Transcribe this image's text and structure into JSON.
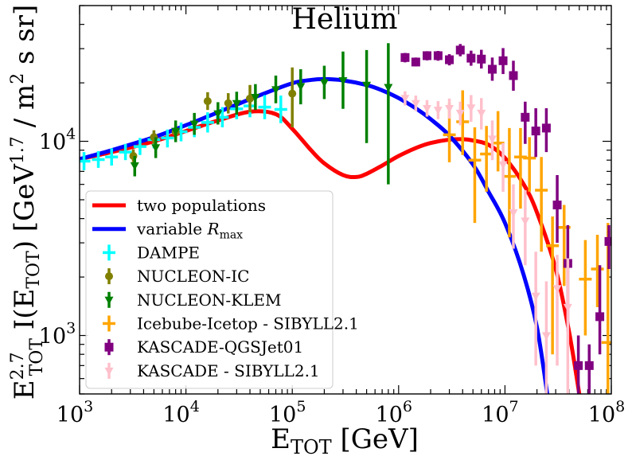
{
  "chart_data": {
    "type": "scatter",
    "title": "Helium",
    "xlabel": "E_TOT [GeV]",
    "ylabel": "E_TOT^2.7 I(E_TOT) [GeV^1.7 / m^2 s sr]",
    "xscale": "log",
    "yscale": "log",
    "xlim": [
      1000,
      100000000
    ],
    "ylim": [
      500,
      50000
    ],
    "legend_position": "lower-left",
    "x_ticks": [
      {
        "value": 1000,
        "base": "10",
        "exp": "3"
      },
      {
        "value": 10000,
        "base": "10",
        "exp": "4"
      },
      {
        "value": 100000,
        "base": "10",
        "exp": "5"
      },
      {
        "value": 1000000,
        "base": "10",
        "exp": "6"
      },
      {
        "value": 10000000,
        "base": "10",
        "exp": "7"
      },
      {
        "value": 100000000,
        "base": "10",
        "exp": "8"
      }
    ],
    "y_ticks": [
      {
        "value": 1000,
        "base": "10",
        "exp": "3"
      },
      {
        "value": 10000,
        "base": "10",
        "exp": "4"
      }
    ],
    "lines": [
      {
        "name": "two populations",
        "color": "#ff0000",
        "x": [
          1000,
          2000,
          5000,
          10000,
          20000,
          40000,
          70000,
          100000,
          150000,
          200000,
          300000,
          400000,
          500000,
          700000,
          1000000,
          1500000,
          2000000,
          3000000,
          4000000,
          5000000,
          7000000,
          10000000,
          15000000,
          20000000,
          30000000,
          40000000,
          50000000
        ],
        "y": [
          8100,
          8800,
          10000,
          11300,
          12800,
          14200,
          13800,
          11600,
          9000,
          7700,
          6700,
          6550,
          6800,
          7500,
          8400,
          9300,
          9800,
          10200,
          10250,
          10100,
          9600,
          8200,
          6000,
          4300,
          2200,
          1050,
          500
        ]
      },
      {
        "name": "variable R_max",
        "color": "#0000ff",
        "x": [
          1000,
          2000,
          5000,
          10000,
          20000,
          50000,
          100000,
          150000,
          200000,
          300000,
          500000,
          700000,
          1000000,
          1500000,
          2000000,
          3000000,
          5000000,
          7000000,
          10000000,
          15000000,
          20000000,
          25000000
        ],
        "y": [
          8100,
          9000,
          10500,
          12100,
          14100,
          17300,
          19900,
          20700,
          20900,
          20600,
          19500,
          18300,
          16700,
          14600,
          13000,
          10700,
          7600,
          5500,
          3800,
          2050,
          1100,
          500
        ]
      }
    ],
    "series": [
      {
        "name": "DAMPE",
        "color": "#00ffff",
        "marker": "plus",
        "points": [
          {
            "x": 1100,
            "y": 7900,
            "lo": 7100,
            "hi": 8800
          },
          {
            "x": 1500,
            "y": 8050,
            "lo": 7300,
            "hi": 8900
          },
          {
            "x": 2000,
            "y": 8300,
            "lo": 7500,
            "hi": 9200
          },
          {
            "x": 2700,
            "y": 8800,
            "lo": 8000,
            "hi": 9700
          },
          {
            "x": 3700,
            "y": 9400,
            "lo": 8500,
            "hi": 10400
          },
          {
            "x": 5000,
            "y": 10200,
            "lo": 9200,
            "hi": 11300
          },
          {
            "x": 6700,
            "y": 10400,
            "lo": 9300,
            "hi": 11500
          },
          {
            "x": 9000,
            "y": 11200,
            "lo": 10000,
            "hi": 12500
          },
          {
            "x": 12000,
            "y": 11800,
            "lo": 10500,
            "hi": 13200
          },
          {
            "x": 16000,
            "y": 12500,
            "lo": 11100,
            "hi": 14100
          },
          {
            "x": 22000,
            "y": 13300,
            "lo": 11800,
            "hi": 15000
          },
          {
            "x": 30000,
            "y": 14700,
            "lo": 13000,
            "hi": 16600
          },
          {
            "x": 40000,
            "y": 15200,
            "lo": 13300,
            "hi": 17400
          },
          {
            "x": 55000,
            "y": 15000,
            "lo": 13000,
            "hi": 17300
          },
          {
            "x": 78000,
            "y": 14600,
            "lo": 12400,
            "hi": 17200
          }
        ]
      },
      {
        "name": "NUCLEON-IC",
        "color": "#808000",
        "marker": "circle",
        "points": [
          {
            "x": 3200,
            "y": 8400,
            "lo": 7800,
            "hi": 9100
          },
          {
            "x": 5000,
            "y": 10500,
            "lo": 9700,
            "hi": 11400
          },
          {
            "x": 8000,
            "y": 11200,
            "lo": 10200,
            "hi": 12300
          },
          {
            "x": 16000,
            "y": 16100,
            "lo": 14500,
            "hi": 17900
          },
          {
            "x": 25000,
            "y": 15700,
            "lo": 13900,
            "hi": 17700
          },
          {
            "x": 40000,
            "y": 16600,
            "lo": 14100,
            "hi": 19500
          },
          {
            "x": 100000,
            "y": 17600,
            "lo": 11800,
            "hi": 24000
          }
        ]
      },
      {
        "name": "NUCLEON-KLEM",
        "color": "#008000",
        "marker": "triangle-down",
        "points": [
          {
            "x": 3300,
            "y": 7500,
            "lo": 6600,
            "hi": 8400
          },
          {
            "x": 5200,
            "y": 9300,
            "lo": 8200,
            "hi": 10500
          },
          {
            "x": 8000,
            "y": 11300,
            "lo": 9900,
            "hi": 12800
          },
          {
            "x": 12000,
            "y": 12300,
            "lo": 10800,
            "hi": 14000
          },
          {
            "x": 20000,
            "y": 13900,
            "lo": 12200,
            "hi": 15900
          },
          {
            "x": 30000,
            "y": 15700,
            "lo": 13700,
            "hi": 18000
          },
          {
            "x": 45000,
            "y": 16900,
            "lo": 14500,
            "hi": 19700
          },
          {
            "x": 70000,
            "y": 18500,
            "lo": 15700,
            "hi": 21800
          },
          {
            "x": 120000,
            "y": 19200,
            "lo": 15500,
            "hi": 23500
          },
          {
            "x": 200000,
            "y": 20100,
            "lo": 16500,
            "hi": 24500
          },
          {
            "x": 300000,
            "y": 20600,
            "lo": 14700,
            "hi": 29000
          },
          {
            "x": 500000,
            "y": 19500,
            "lo": 9800,
            "hi": 29500
          },
          {
            "x": 800000,
            "y": 19000,
            "lo": 6000,
            "hi": 32000
          }
        ]
      },
      {
        "name": "Icebube-Icetop - SIBYLL2.1",
        "color": "#ffa500",
        "marker": "plus",
        "points": [
          {
            "x": 3000000,
            "y": 10800,
            "lo": 7800,
            "hi": 15800
          },
          {
            "x": 4000000,
            "y": 12600,
            "lo": 8500,
            "hi": 18300
          },
          {
            "x": 5200000,
            "y": 8000,
            "lo": 3800,
            "hi": 11800
          },
          {
            "x": 6700000,
            "y": 8600,
            "lo": 5500,
            "hi": 12000
          },
          {
            "x": 8600000,
            "y": 9800,
            "lo": 7000,
            "hi": 14300
          },
          {
            "x": 11000000,
            "y": 6600,
            "lo": 3200,
            "hi": 11700
          },
          {
            "x": 14000000,
            "y": 8300,
            "lo": 4500,
            "hi": 11700
          },
          {
            "x": 17000000,
            "y": 8200,
            "lo": 5500,
            "hi": 10500
          },
          {
            "x": 22000000,
            "y": 5600,
            "lo": 2700,
            "hi": 8300
          },
          {
            "x": 28000000,
            "y": 2900,
            "lo": 800,
            "hi": 4100
          },
          {
            "x": 36000000,
            "y": 3600,
            "lo": 1800,
            "hi": 4700
          },
          {
            "x": 57000000,
            "y": 1950,
            "lo": 1000,
            "hi": 3100
          },
          {
            "x": 74000000,
            "y": 2200,
            "lo": 1400,
            "hi": 3300
          },
          {
            "x": 93000000,
            "y": 920,
            "lo": 500,
            "hi": 3800
          }
        ]
      },
      {
        "name": "KASCADE-QGSJet01",
        "color": "#800080",
        "marker": "square",
        "points": [
          {
            "x": 1150000,
            "y": 27000,
            "lo": 25500,
            "hi": 28500
          },
          {
            "x": 1450000,
            "y": 25600,
            "lo": 24300,
            "hi": 27000
          },
          {
            "x": 1850000,
            "y": 27600,
            "lo": 26100,
            "hi": 29100
          },
          {
            "x": 2350000,
            "y": 27600,
            "lo": 26000,
            "hi": 29200
          },
          {
            "x": 3000000,
            "y": 26300,
            "lo": 24600,
            "hi": 28100
          },
          {
            "x": 3800000,
            "y": 29500,
            "lo": 27400,
            "hi": 31700
          },
          {
            "x": 4800000,
            "y": 26800,
            "lo": 24500,
            "hi": 29300
          },
          {
            "x": 6000000,
            "y": 26500,
            "lo": 23700,
            "hi": 29600
          },
          {
            "x": 7600000,
            "y": 23500,
            "lo": 20500,
            "hi": 27000
          },
          {
            "x": 9600000,
            "y": 26000,
            "lo": 22200,
            "hi": 30200
          },
          {
            "x": 12000000,
            "y": 21800,
            "lo": 18200,
            "hi": 26000
          },
          {
            "x": 15500000,
            "y": 13300,
            "lo": 9700,
            "hi": 16000
          },
          {
            "x": 19500000,
            "y": 11300,
            "lo": 8300,
            "hi": 14800
          },
          {
            "x": 24500000,
            "y": 11700,
            "lo": 8800,
            "hi": 14800
          },
          {
            "x": 31000000,
            "y": 4700,
            "lo": 3000,
            "hi": 6700
          },
          {
            "x": 39000000,
            "y": 2350,
            "lo": 1050,
            "hi": 3700
          },
          {
            "x": 49000000,
            "y": 700,
            "lo": 500,
            "hi": 1000
          },
          {
            "x": 62000000,
            "y": 700,
            "lo": 500,
            "hi": 900
          },
          {
            "x": 78000000,
            "y": 1250,
            "lo": 800,
            "hi": 2300
          },
          {
            "x": 95000000,
            "y": 3050,
            "lo": 2200,
            "hi": 3700
          }
        ]
      },
      {
        "name": "KASCADE - SIBYLL2.1",
        "color": "#ffc0cb",
        "marker": "triangle-down",
        "points": [
          {
            "x": 1150000,
            "y": 16700,
            "lo": 15300,
            "hi": 18100
          },
          {
            "x": 1450000,
            "y": 15700,
            "lo": 14300,
            "hi": 17200
          },
          {
            "x": 1850000,
            "y": 14800,
            "lo": 13400,
            "hi": 16300
          },
          {
            "x": 2350000,
            "y": 14500,
            "lo": 13000,
            "hi": 16100
          },
          {
            "x": 3000000,
            "y": 14800,
            "lo": 13100,
            "hi": 16600
          },
          {
            "x": 3800000,
            "y": 14000,
            "lo": 12100,
            "hi": 16000
          },
          {
            "x": 4800000,
            "y": 14900,
            "lo": 12600,
            "hi": 17300
          },
          {
            "x": 6000000,
            "y": 14000,
            "lo": 11500,
            "hi": 16700
          },
          {
            "x": 7600000,
            "y": 10300,
            "lo": 8000,
            "hi": 12800
          },
          {
            "x": 9600000,
            "y": 7600,
            "lo": 5500,
            "hi": 9800
          },
          {
            "x": 12000000,
            "y": 4300,
            "lo": 2800,
            "hi": 6000
          },
          {
            "x": 15500000,
            "y": 3900,
            "lo": 2300,
            "hi": 5600
          },
          {
            "x": 19500000,
            "y": 1600,
            "lo": 700,
            "hi": 2700
          },
          {
            "x": 24500000,
            "y": 1000,
            "lo": 500,
            "hi": 1900
          },
          {
            "x": 31000000,
            "y": 1750,
            "lo": 700,
            "hi": 2600
          },
          {
            "x": 39000000,
            "y": 1400,
            "lo": 500,
            "hi": 2500
          }
        ]
      }
    ],
    "legend": [
      {
        "label": "two populations",
        "color": "#ff0000",
        "kind": "line"
      },
      {
        "label": "variable ",
        "label_italic": "R",
        "label_sub": "max",
        "color": "#0000ff",
        "kind": "line"
      },
      {
        "label": "DAMPE",
        "color": "#00ffff",
        "kind": "plus"
      },
      {
        "label": "NUCLEON-IC",
        "color": "#808000",
        "kind": "circle"
      },
      {
        "label": "NUCLEON-KLEM",
        "color": "#008000",
        "kind": "triangle-down"
      },
      {
        "label": "Icebube-Icetop - SIBYLL2.1",
        "color": "#ffa500",
        "kind": "plus"
      },
      {
        "label": "KASCADE-QGSJet01",
        "color": "#800080",
        "kind": "square"
      },
      {
        "label": "KASCADE - SIBYLL2.1",
        "color": "#ffc0cb",
        "kind": "triangle-down"
      }
    ],
    "axis_text": {
      "x_main": "E",
      "x_sub": "TOT",
      "x_unit": " [GeV]",
      "y_main": "E",
      "y_sup": "2.7",
      "y_sub": "TOT",
      "y_func": " I(E",
      "y_func_sub": "TOT",
      "y_func_close": ")",
      "y_unit_open": " [GeV",
      "y_unit_sup": "1.7",
      "y_unit_mid": " / m",
      "y_unit_sup2": "2",
      "y_unit_close": " s sr]"
    }
  }
}
